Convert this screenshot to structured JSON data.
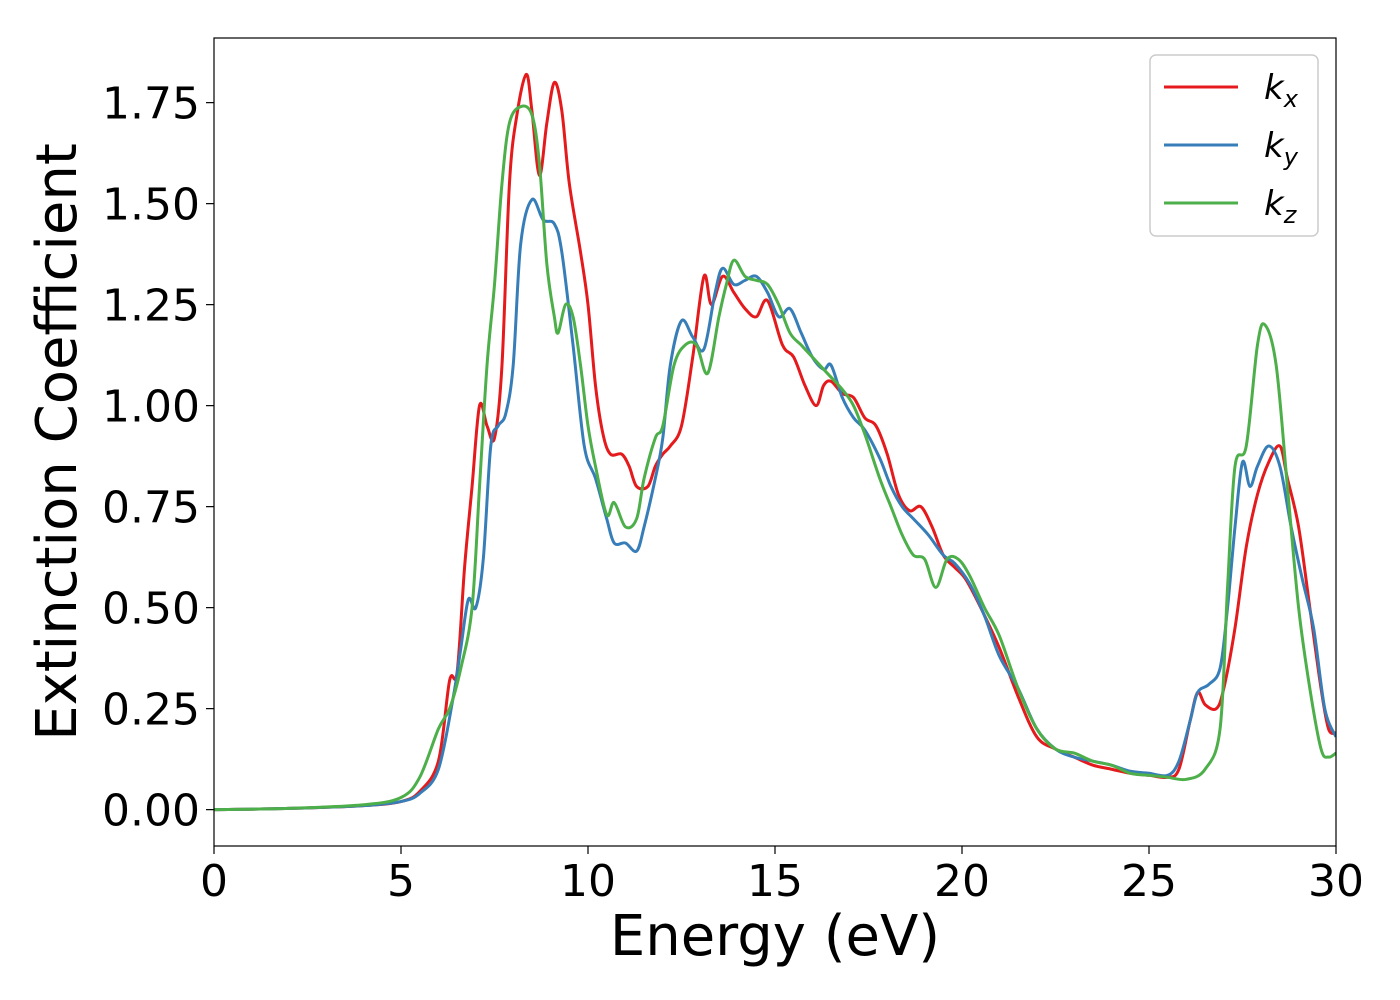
{
  "chart_data": {
    "type": "line",
    "xlabel": "Energy (eV)",
    "ylabel": "Extinction Coefficient",
    "xlim": [
      0,
      30
    ],
    "ylim": [
      -0.09,
      1.91
    ],
    "xticks": [
      0,
      5,
      10,
      15,
      20,
      25,
      30
    ],
    "xtick_labels": [
      "0",
      "5",
      "10",
      "15",
      "20",
      "25",
      "30"
    ],
    "yticks": [
      0.0,
      0.25,
      0.5,
      0.75,
      1.0,
      1.25,
      1.5,
      1.75
    ],
    "ytick_labels": [
      "0.00",
      "0.25",
      "0.50",
      "0.75",
      "1.00",
      "1.25",
      "1.50",
      "1.75"
    ],
    "grid": false,
    "legend_position": "top-right",
    "series": [
      {
        "name": "k",
        "subscript": "x",
        "color": "#e41a1c",
        "points": [
          [
            0,
            0
          ],
          [
            2,
            0.003
          ],
          [
            4,
            0.01
          ],
          [
            5,
            0.02
          ],
          [
            5.5,
            0.045
          ],
          [
            6,
            0.12
          ],
          [
            6.3,
            0.32
          ],
          [
            6.5,
            0.34
          ],
          [
            6.7,
            0.6
          ],
          [
            6.9,
            0.8
          ],
          [
            7.1,
            1.0
          ],
          [
            7.3,
            0.95
          ],
          [
            7.5,
            0.92
          ],
          [
            7.7,
            1.1
          ],
          [
            7.9,
            1.55
          ],
          [
            8.1,
            1.72
          ],
          [
            8.35,
            1.82
          ],
          [
            8.5,
            1.73
          ],
          [
            8.7,
            1.57
          ],
          [
            8.9,
            1.7
          ],
          [
            9.1,
            1.8
          ],
          [
            9.3,
            1.73
          ],
          [
            9.5,
            1.55
          ],
          [
            9.8,
            1.38
          ],
          [
            10,
            1.25
          ],
          [
            10.2,
            1.05
          ],
          [
            10.4,
            0.93
          ],
          [
            10.6,
            0.88
          ],
          [
            10.9,
            0.88
          ],
          [
            11.1,
            0.85
          ],
          [
            11.3,
            0.8
          ],
          [
            11.6,
            0.8
          ],
          [
            11.8,
            0.85
          ],
          [
            12,
            0.88
          ],
          [
            12.2,
            0.9
          ],
          [
            12.5,
            0.95
          ],
          [
            12.8,
            1.12
          ],
          [
            13.1,
            1.32
          ],
          [
            13.3,
            1.25
          ],
          [
            13.6,
            1.32
          ],
          [
            13.9,
            1.28
          ],
          [
            14.2,
            1.24
          ],
          [
            14.5,
            1.22
          ],
          [
            14.8,
            1.26
          ],
          [
            15.2,
            1.15
          ],
          [
            15.5,
            1.12
          ],
          [
            15.8,
            1.05
          ],
          [
            16.1,
            1.0
          ],
          [
            16.3,
            1.05
          ],
          [
            16.5,
            1.06
          ],
          [
            16.8,
            1.03
          ],
          [
            17.1,
            1.02
          ],
          [
            17.4,
            0.97
          ],
          [
            17.7,
            0.95
          ],
          [
            18,
            0.88
          ],
          [
            18.3,
            0.78
          ],
          [
            18.6,
            0.74
          ],
          [
            18.9,
            0.75
          ],
          [
            19.2,
            0.7
          ],
          [
            19.5,
            0.63
          ],
          [
            19.8,
            0.6
          ],
          [
            20.1,
            0.57
          ],
          [
            20.5,
            0.5
          ],
          [
            21,
            0.4
          ],
          [
            21.5,
            0.28
          ],
          [
            22,
            0.18
          ],
          [
            22.5,
            0.15
          ],
          [
            23,
            0.13
          ],
          [
            23.5,
            0.11
          ],
          [
            24,
            0.1
          ],
          [
            24.5,
            0.09
          ],
          [
            25,
            0.085
          ],
          [
            25.5,
            0.08
          ],
          [
            25.8,
            0.1
          ],
          [
            26.1,
            0.22
          ],
          [
            26.3,
            0.29
          ],
          [
            26.5,
            0.26
          ],
          [
            26.8,
            0.25
          ],
          [
            27,
            0.3
          ],
          [
            27.3,
            0.45
          ],
          [
            27.6,
            0.65
          ],
          [
            27.9,
            0.78
          ],
          [
            28.2,
            0.86
          ],
          [
            28.5,
            0.9
          ],
          [
            28.7,
            0.82
          ],
          [
            29,
            0.7
          ],
          [
            29.3,
            0.5
          ],
          [
            29.6,
            0.3
          ],
          [
            29.8,
            0.2
          ],
          [
            30,
            0.19
          ]
        ]
      },
      {
        "name": "k",
        "subscript": "y",
        "color": "#377eb8",
        "points": [
          [
            0,
            0
          ],
          [
            2,
            0.003
          ],
          [
            4,
            0.01
          ],
          [
            5,
            0.02
          ],
          [
            5.5,
            0.04
          ],
          [
            6,
            0.1
          ],
          [
            6.4,
            0.28
          ],
          [
            6.6,
            0.4
          ],
          [
            6.8,
            0.52
          ],
          [
            7,
            0.5
          ],
          [
            7.2,
            0.62
          ],
          [
            7.4,
            0.9
          ],
          [
            7.6,
            0.95
          ],
          [
            7.8,
            0.98
          ],
          [
            8,
            1.1
          ],
          [
            8.2,
            1.4
          ],
          [
            8.5,
            1.51
          ],
          [
            8.8,
            1.46
          ],
          [
            9.1,
            1.45
          ],
          [
            9.3,
            1.38
          ],
          [
            9.6,
            1.15
          ],
          [
            9.9,
            0.9
          ],
          [
            10.2,
            0.82
          ],
          [
            10.5,
            0.72
          ],
          [
            10.7,
            0.66
          ],
          [
            11,
            0.66
          ],
          [
            11.3,
            0.64
          ],
          [
            11.5,
            0.7
          ],
          [
            11.8,
            0.82
          ],
          [
            12,
            0.92
          ],
          [
            12.2,
            1.1
          ],
          [
            12.5,
            1.21
          ],
          [
            12.8,
            1.17
          ],
          [
            13.1,
            1.14
          ],
          [
            13.4,
            1.28
          ],
          [
            13.6,
            1.34
          ],
          [
            13.9,
            1.3
          ],
          [
            14.2,
            1.31
          ],
          [
            14.5,
            1.32
          ],
          [
            14.8,
            1.28
          ],
          [
            15.1,
            1.22
          ],
          [
            15.4,
            1.24
          ],
          [
            15.7,
            1.18
          ],
          [
            16,
            1.12
          ],
          [
            16.3,
            1.09
          ],
          [
            16.5,
            1.1
          ],
          [
            16.8,
            1.02
          ],
          [
            17.1,
            0.97
          ],
          [
            17.4,
            0.94
          ],
          [
            17.8,
            0.87
          ],
          [
            18.1,
            0.8
          ],
          [
            18.4,
            0.75
          ],
          [
            18.7,
            0.72
          ],
          [
            19.1,
            0.68
          ],
          [
            19.5,
            0.63
          ],
          [
            19.8,
            0.61
          ],
          [
            20.2,
            0.56
          ],
          [
            20.6,
            0.48
          ],
          [
            21,
            0.38
          ],
          [
            21.5,
            0.3
          ],
          [
            22,
            0.2
          ],
          [
            22.5,
            0.15
          ],
          [
            23,
            0.13
          ],
          [
            23.5,
            0.12
          ],
          [
            24,
            0.11
          ],
          [
            24.5,
            0.095
          ],
          [
            25,
            0.09
          ],
          [
            25.5,
            0.085
          ],
          [
            25.8,
            0.12
          ],
          [
            26.1,
            0.22
          ],
          [
            26.3,
            0.29
          ],
          [
            26.6,
            0.31
          ],
          [
            26.9,
            0.35
          ],
          [
            27.1,
            0.5
          ],
          [
            27.3,
            0.7
          ],
          [
            27.5,
            0.86
          ],
          [
            27.7,
            0.8
          ],
          [
            27.9,
            0.85
          ],
          [
            28.2,
            0.9
          ],
          [
            28.5,
            0.85
          ],
          [
            28.8,
            0.7
          ],
          [
            29.1,
            0.57
          ],
          [
            29.4,
            0.45
          ],
          [
            29.7,
            0.25
          ],
          [
            30,
            0.18
          ]
        ]
      },
      {
        "name": "k",
        "subscript": "z",
        "color": "#4daf4a",
        "points": [
          [
            0,
            0
          ],
          [
            2,
            0.003
          ],
          [
            4,
            0.012
          ],
          [
            5,
            0.03
          ],
          [
            5.5,
            0.08
          ],
          [
            6,
            0.2
          ],
          [
            6.3,
            0.25
          ],
          [
            6.6,
            0.35
          ],
          [
            6.9,
            0.5
          ],
          [
            7.1,
            0.8
          ],
          [
            7.3,
            1.1
          ],
          [
            7.5,
            1.3
          ],
          [
            7.7,
            1.55
          ],
          [
            7.9,
            1.7
          ],
          [
            8.2,
            1.74
          ],
          [
            8.5,
            1.72
          ],
          [
            8.7,
            1.6
          ],
          [
            8.9,
            1.35
          ],
          [
            9.1,
            1.22
          ],
          [
            9.2,
            1.18
          ],
          [
            9.4,
            1.25
          ],
          [
            9.6,
            1.22
          ],
          [
            9.8,
            1.1
          ],
          [
            10,
            0.95
          ],
          [
            10.2,
            0.85
          ],
          [
            10.5,
            0.73
          ],
          [
            10.7,
            0.76
          ],
          [
            11,
            0.7
          ],
          [
            11.3,
            0.72
          ],
          [
            11.5,
            0.82
          ],
          [
            11.8,
            0.92
          ],
          [
            12,
            0.95
          ],
          [
            12.3,
            1.1
          ],
          [
            12.6,
            1.15
          ],
          [
            12.9,
            1.15
          ],
          [
            13.2,
            1.08
          ],
          [
            13.5,
            1.22
          ],
          [
            13.7,
            1.3
          ],
          [
            13.9,
            1.36
          ],
          [
            14.2,
            1.32
          ],
          [
            14.5,
            1.31
          ],
          [
            14.8,
            1.3
          ],
          [
            15.1,
            1.25
          ],
          [
            15.4,
            1.18
          ],
          [
            15.7,
            1.15
          ],
          [
            16,
            1.12
          ],
          [
            16.4,
            1.08
          ],
          [
            16.8,
            1.04
          ],
          [
            17.1,
            1.0
          ],
          [
            17.4,
            0.93
          ],
          [
            17.8,
            0.82
          ],
          [
            18.1,
            0.75
          ],
          [
            18.4,
            0.68
          ],
          [
            18.7,
            0.63
          ],
          [
            19,
            0.62
          ],
          [
            19.3,
            0.55
          ],
          [
            19.6,
            0.62
          ],
          [
            19.9,
            0.62
          ],
          [
            20.2,
            0.58
          ],
          [
            20.6,
            0.5
          ],
          [
            21,
            0.43
          ],
          [
            21.5,
            0.3
          ],
          [
            22,
            0.2
          ],
          [
            22.5,
            0.15
          ],
          [
            23,
            0.14
          ],
          [
            23.5,
            0.12
          ],
          [
            24,
            0.11
          ],
          [
            24.5,
            0.09
          ],
          [
            25,
            0.085
          ],
          [
            25.5,
            0.08
          ],
          [
            26,
            0.075
          ],
          [
            26.5,
            0.1
          ],
          [
            26.9,
            0.2
          ],
          [
            27.1,
            0.55
          ],
          [
            27.3,
            0.85
          ],
          [
            27.6,
            0.9
          ],
          [
            27.9,
            1.15
          ],
          [
            28.1,
            1.2
          ],
          [
            28.4,
            1.1
          ],
          [
            28.7,
            0.8
          ],
          [
            29,
            0.5
          ],
          [
            29.3,
            0.3
          ],
          [
            29.6,
            0.15
          ],
          [
            29.8,
            0.13
          ],
          [
            30,
            0.14
          ]
        ]
      }
    ]
  }
}
